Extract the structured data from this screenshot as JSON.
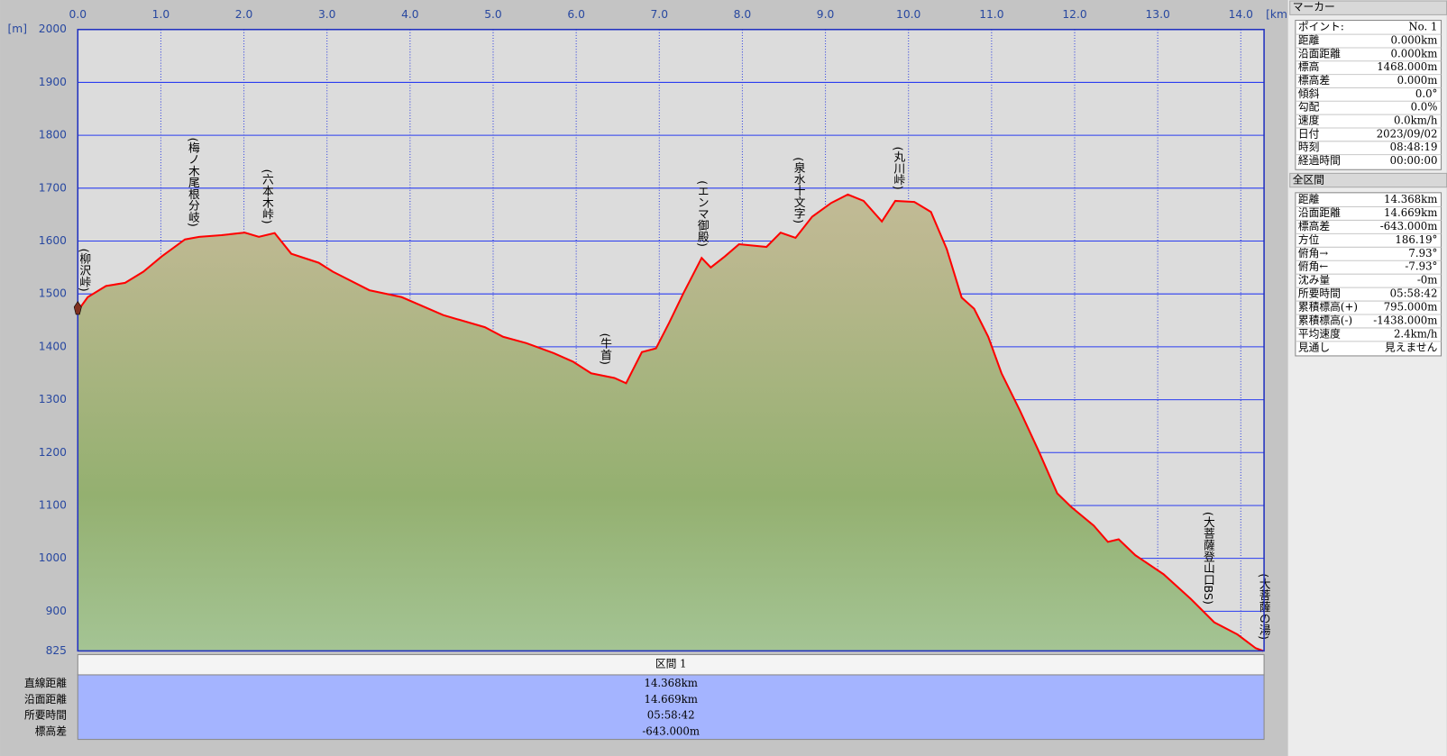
{
  "chart_data": {
    "type": "area",
    "x_unit": "[km]",
    "y_unit": "[m]",
    "x": [
      0,
      0.12,
      0.34,
      0.57,
      0.79,
      1.01,
      1.29,
      1.46,
      1.73,
      2.01,
      2.18,
      2.37,
      2.57,
      2.9,
      3.07,
      3.51,
      3.9,
      4.4,
      4.9,
      5.12,
      5.4,
      5.73,
      5.96,
      6.18,
      6.46,
      6.6,
      6.79,
      6.96,
      7.12,
      7.29,
      7.51,
      7.62,
      7.79,
      7.96,
      8.29,
      8.46,
      8.64,
      8.84,
      9.07,
      9.27,
      9.46,
      9.68,
      9.84,
      10.07,
      10.27,
      10.46,
      10.64,
      10.79,
      10.96,
      11.12,
      11.34,
      11.57,
      11.79,
      11.96,
      12.23,
      12.4,
      12.53,
      12.73,
      13.07,
      13.4,
      13.68,
      13.96,
      14.18,
      14.27
    ],
    "values": [
      1468,
      1494,
      1515,
      1521,
      1542,
      1571,
      1603,
      1608,
      1611,
      1616,
      1608,
      1615,
      1576,
      1559,
      1542,
      1507,
      1494,
      1460,
      1437,
      1419,
      1407,
      1388,
      1372,
      1350,
      1341,
      1331,
      1390,
      1397,
      1446,
      1501,
      1568,
      1550,
      1571,
      1594,
      1589,
      1616,
      1606,
      1646,
      1672,
      1688,
      1676,
      1637,
      1676,
      1674,
      1655,
      1585,
      1493,
      1472,
      1419,
      1350,
      1280,
      1202,
      1123,
      1097,
      1062,
      1031,
      1036,
      1006,
      970,
      923,
      879,
      856,
      830,
      825
    ],
    "color": "#ff0000",
    "xlim": [
      0,
      14.28
    ],
    "ylim": [
      825,
      2000
    ],
    "xticks": [
      {
        "value": 0,
        "label": "0.0"
      },
      {
        "value": 1,
        "label": "1.0"
      },
      {
        "value": 2,
        "label": "2.0"
      },
      {
        "value": 3,
        "label": "3.0"
      },
      {
        "value": 4,
        "label": "4.0"
      },
      {
        "value": 5,
        "label": "5.0"
      },
      {
        "value": 6,
        "label": "6.0"
      },
      {
        "value": 7,
        "label": "7.0"
      },
      {
        "value": 8,
        "label": "8.0"
      },
      {
        "value": 9,
        "label": "9.0"
      },
      {
        "value": 10,
        "label": "10.0"
      },
      {
        "value": 11,
        "label": "11.0"
      },
      {
        "value": 12,
        "label": "12.0"
      },
      {
        "value": 13,
        "label": "13.0"
      },
      {
        "value": 14,
        "label": "14.0"
      }
    ],
    "yticks": [
      825,
      900,
      1000,
      1100,
      1200,
      1300,
      1400,
      1500,
      1600,
      1700,
      1800,
      1900,
      2000
    ],
    "grid": true,
    "annotations": [
      {
        "text": "(柳沢峠)",
        "x": 0.07
      },
      {
        "text": "(梅ノ木尾根分岐)",
        "x": 1.38
      },
      {
        "text": "(六本木峠)",
        "x": 2.27
      },
      {
        "text": "(牛首)",
        "x": 6.34
      },
      {
        "text": "(エンマ御殿)",
        "x": 7.51
      },
      {
        "text": "(泉水十文字)",
        "x": 8.67
      },
      {
        "text": "(丸川峠)",
        "x": 9.87
      },
      {
        "text": "(大菩薩登山口BS)",
        "x": 13.6
      },
      {
        "text": "(大菩薩の湯)",
        "x": 14.27
      }
    ]
  },
  "marker_panel": {
    "title": "マーカー",
    "rows": [
      [
        "ポイント:",
        "No. 1"
      ],
      [
        "距離",
        "0.000km"
      ],
      [
        "沿面距離",
        "0.000km"
      ],
      [
        "標高",
        "1468.000m"
      ],
      [
        "標高差",
        "0.000m"
      ],
      [
        "傾斜",
        "0.0°"
      ],
      [
        "勾配",
        "0.0%"
      ],
      [
        "速度",
        "0.0km/h"
      ],
      [
        "日付",
        "2023/09/02"
      ],
      [
        "時刻",
        "08:48:19"
      ],
      [
        "経過時間",
        "00:00:00"
      ]
    ]
  },
  "section_panel": {
    "title": "全区間",
    "rows": [
      [
        "距離",
        "14.368km"
      ],
      [
        "沿面距離",
        "14.669km"
      ],
      [
        "標高差",
        "-643.000m"
      ],
      [
        "方位",
        "186.19°"
      ],
      [
        "俯角→",
        "7.93°"
      ],
      [
        "俯角←",
        "-7.93°"
      ],
      [
        "沈み量",
        "-0m"
      ],
      [
        "所要時間",
        "05:58:42"
      ],
      [
        "累積標高(+)",
        "795.000m"
      ],
      [
        "累積標高(-)",
        "-1438.000m"
      ],
      [
        "平均速度",
        "2.4km/h"
      ],
      [
        "見通し",
        "見えません"
      ]
    ]
  },
  "section_table": {
    "title": "区間 1",
    "rows": [
      [
        "直線距離",
        "14.368km"
      ],
      [
        "沿面距離",
        "14.669km"
      ],
      [
        "所要時間",
        "05:58:42"
      ],
      [
        "標高差",
        "-643.000m"
      ]
    ]
  }
}
